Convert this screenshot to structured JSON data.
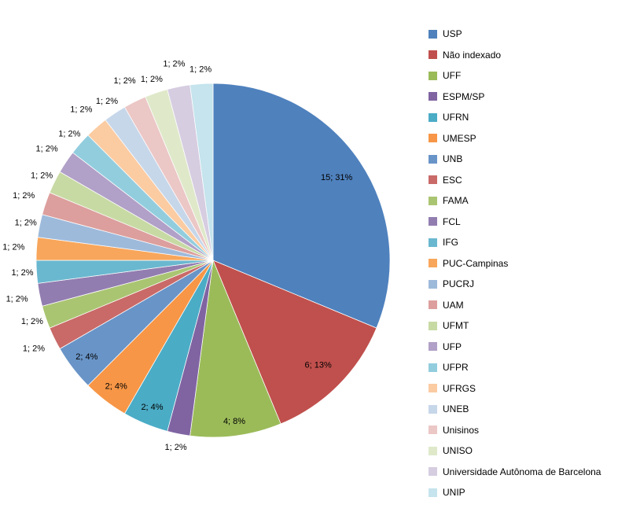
{
  "chart_data": {
    "type": "pie",
    "title": "",
    "start_angle_deg": 0,
    "direction": "clockwise",
    "total": 48,
    "legend_position": "right",
    "label_format": "value; percent",
    "series": [
      {
        "name": "USP",
        "value": 15,
        "percent": 31,
        "label": "15; 31%",
        "color": "#4F81BD"
      },
      {
        "name": "Não indexado",
        "value": 6,
        "percent": 13,
        "label": "6; 13%",
        "color": "#C0504D"
      },
      {
        "name": "UFF",
        "value": 4,
        "percent": 8,
        "label": "4; 8%",
        "color": "#9BBB59"
      },
      {
        "name": "ESPM/SP",
        "value": 1,
        "percent": 2,
        "label": "1; 2%",
        "color": "#8064A2"
      },
      {
        "name": "UFRN",
        "value": 2,
        "percent": 4,
        "label": "2; 4%",
        "color": "#4BACC6"
      },
      {
        "name": "UMESP",
        "value": 2,
        "percent": 4,
        "label": "2; 4%",
        "color": "#F79646"
      },
      {
        "name": "UNB",
        "value": 2,
        "percent": 4,
        "label": "2; 4%",
        "color": "#6994C7"
      },
      {
        "name": "ESC",
        "value": 1,
        "percent": 2,
        "label": "1; 2%",
        "color": "#C96A68"
      },
      {
        "name": "FAMA",
        "value": 1,
        "percent": 2,
        "label": "1; 2%",
        "color": "#AAC572"
      },
      {
        "name": "FCL",
        "value": 1,
        "percent": 2,
        "label": "1; 2%",
        "color": "#927DB0"
      },
      {
        "name": "IFG",
        "value": 1,
        "percent": 2,
        "label": "1; 2%",
        "color": "#6AB8CF"
      },
      {
        "name": "PUC-Campinas",
        "value": 1,
        "percent": 2,
        "label": "1; 2%",
        "color": "#F8A65B"
      },
      {
        "name": "PUCRJ",
        "value": 1,
        "percent": 2,
        "label": "1; 2%",
        "color": "#9EBADB"
      },
      {
        "name": "UAM",
        "value": 1,
        "percent": 2,
        "label": "1; 2%",
        "color": "#DC9F9D"
      },
      {
        "name": "UFMT",
        "value": 1,
        "percent": 2,
        "label": "1; 2%",
        "color": "#C8DAA4"
      },
      {
        "name": "UFP",
        "value": 1,
        "percent": 2,
        "label": "1; 2%",
        "color": "#B1A0C7"
      },
      {
        "name": "UFPR",
        "value": 1,
        "percent": 2,
        "label": "1; 2%",
        "color": "#92CDDE"
      },
      {
        "name": "UFRGS",
        "value": 1,
        "percent": 2,
        "label": "1; 2%",
        "color": "#FBCBA2"
      },
      {
        "name": "UNEB",
        "value": 1,
        "percent": 2,
        "label": "1; 2%",
        "color": "#C7D7EA"
      },
      {
        "name": "Unisinos",
        "value": 1,
        "percent": 2,
        "label": "1; 2%",
        "color": "#EBC7C6"
      },
      {
        "name": "UNISO",
        "value": 1,
        "percent": 2,
        "label": "1; 2%",
        "color": "#DFE9CA"
      },
      {
        "name": "Universidade Autônoma de Barcelona",
        "value": 1,
        "percent": 2,
        "label": "1; 2%",
        "color": "#D6CDE1"
      },
      {
        "name": "UNIP",
        "value": 1,
        "percent": 2,
        "label": "1; 2%",
        "color": "#C5E4ED"
      }
    ]
  }
}
